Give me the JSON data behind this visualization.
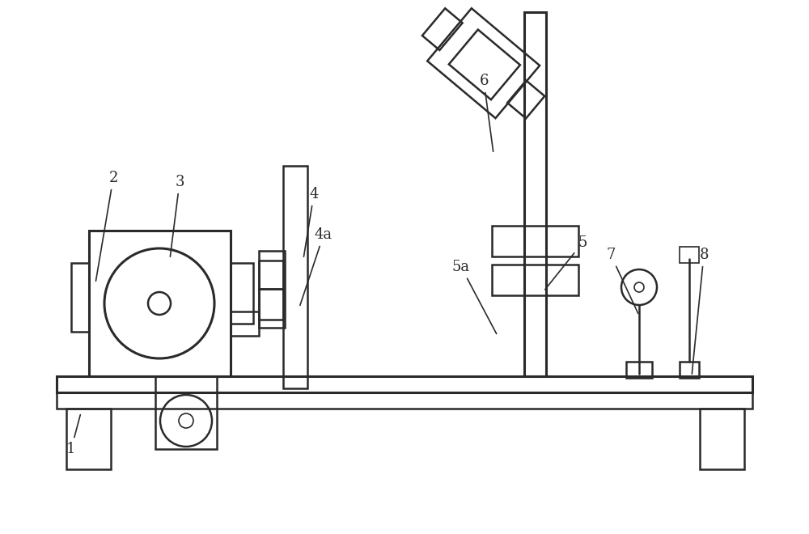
{
  "bg_color": "#ffffff",
  "lc": "#2a2a2a",
  "lw_thin": 1.2,
  "lw_med": 1.8,
  "lw_thick": 2.2,
  "label_fs": 13
}
